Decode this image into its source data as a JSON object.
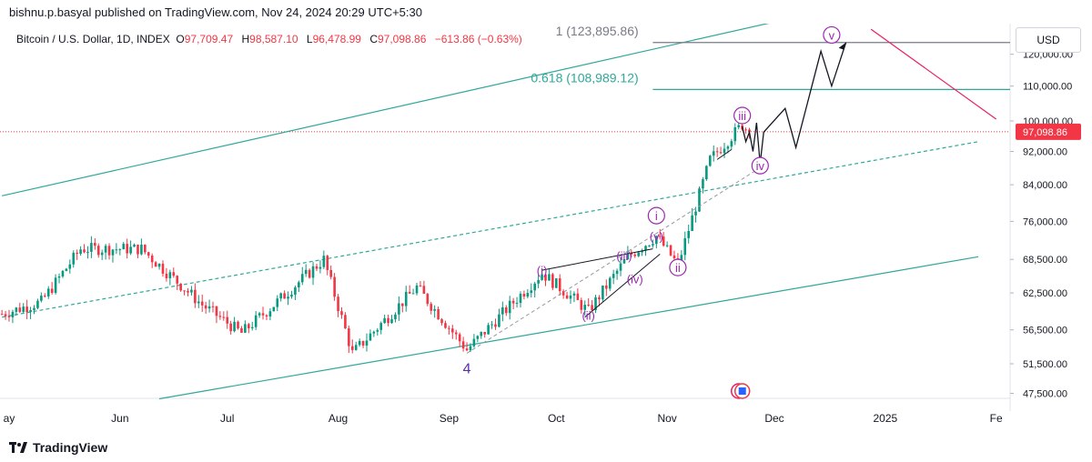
{
  "header": {
    "published_line": "bishnu.p.basyal published on TradingView.com, Nov 24, 2024 20:29 UTC+5:30"
  },
  "legend": {
    "symbol": "Bitcoin / U.S. Dollar, 1D, INDEX",
    "open_label": "O",
    "open": "97,709.47",
    "high_label": "H",
    "high": "98,587.10",
    "low_label": "L",
    "low": "96,478.99",
    "close_label": "C",
    "close": "97,098.86",
    "change": "−613.86 (−0.63%)"
  },
  "currency_button": "USD",
  "footer": {
    "brand": "TradingView"
  },
  "colors": {
    "up": "#089981",
    "down": "#f23645",
    "channel": "#2ea89a",
    "wave_label": "#9c27b0",
    "wave4_label": "#5b2ea6",
    "arrow": "#e91e63",
    "path": "#131722"
  },
  "chart_data": {
    "type": "candlestick",
    "y_axis": {
      "scale": "log",
      "tick_labels": [
        "120,000.00",
        "110,000.00",
        "100,000.00",
        "92,000.00",
        "84,000.00",
        "76,000.00",
        "68,500.00",
        "62,500.00",
        "56,500.00",
        "51,500.00",
        "47,500.00"
      ],
      "tick_values": [
        120000,
        110000,
        100000,
        92000,
        84000,
        76000,
        68500,
        62500,
        56500,
        51500,
        47500
      ]
    },
    "x_axis": {
      "tick_labels": [
        "ay",
        "Jun",
        "Jul",
        "Aug",
        "Sep",
        "Oct",
        "Nov",
        "Dec",
        "2025",
        "Fe"
      ],
      "tick_dates": [
        "2024-05-01",
        "2024-06-01",
        "2024-07-01",
        "2024-08-01",
        "2024-09-01",
        "2024-10-01",
        "2024-11-01",
        "2024-12-01",
        "2025-01-01",
        "2025-02-01"
      ]
    },
    "last_price_label": "97,098.86",
    "last_price": 97098.86,
    "fib_levels": [
      {
        "label": "1 (123,895.86)",
        "value": 123895.86
      },
      {
        "label": "0.618 (108,989.12)",
        "value": 108989.12
      }
    ],
    "wave_labels": [
      {
        "text": "(i)",
        "date": "2024-09-27",
        "price": 66500
      },
      {
        "text": "(ii)",
        "date": "2024-10-10",
        "price": 58800
      },
      {
        "text": "(iii)",
        "date": "2024-10-20",
        "price": 69200
      },
      {
        "text": "(iv)",
        "date": "2024-10-23",
        "price": 65000
      },
      {
        "text": "(v)",
        "date": "2024-10-29",
        "price": 73000
      },
      {
        "text": "i",
        "date": "2024-10-29",
        "price": 77200
      },
      {
        "text": "ii",
        "date": "2024-11-04",
        "price": 67000
      },
      {
        "text": "iii",
        "date": "2024-11-22",
        "price": 101500
      },
      {
        "text": "iv",
        "date": "2024-11-27",
        "price": 88500
      },
      {
        "text": "v",
        "date": "2024-12-17",
        "price": 126500
      },
      {
        "text": "4",
        "date": "2024-09-06",
        "price": 50800
      }
    ],
    "candles_summary": {
      "start_date": "2024-04-29",
      "end_date": "2024-11-24",
      "anchors": [
        [
          "2024-04-29",
          59000
        ],
        [
          "2024-05-10",
          61000
        ],
        [
          "2024-05-21",
          70500
        ],
        [
          "2024-06-07",
          70500
        ],
        [
          "2024-06-24",
          60500
        ],
        [
          "2024-07-05",
          56000
        ],
        [
          "2024-07-14",
          60500
        ],
        [
          "2024-07-28",
          68500
        ],
        [
          "2024-08-05",
          53000
        ],
        [
          "2024-08-23",
          63500
        ],
        [
          "2024-09-06",
          53500
        ],
        [
          "2024-09-27",
          66000
        ],
        [
          "2024-10-10",
          59500
        ],
        [
          "2024-10-21",
          69000
        ],
        [
          "2024-10-29",
          73000
        ],
        [
          "2024-11-04",
          67500
        ],
        [
          "2024-11-13",
          90000
        ],
        [
          "2024-11-22",
          99000
        ],
        [
          "2024-11-24",
          97098.86
        ]
      ]
    },
    "projection_path": [
      [
        "2024-11-22",
        98500
      ],
      [
        "2024-11-23",
        94500
      ],
      [
        "2024-11-24",
        97000
      ],
      [
        "2024-11-25",
        92000
      ],
      [
        "2024-11-26",
        99500
      ],
      [
        "2024-11-27",
        89000
      ],
      [
        "2024-11-28",
        97000
      ],
      [
        "2024-12-04",
        103500
      ],
      [
        "2024-12-07",
        93000
      ],
      [
        "2024-12-14",
        121000
      ],
      [
        "2024-12-17",
        110000
      ],
      [
        "2024-12-21",
        123895.86
      ]
    ]
  }
}
